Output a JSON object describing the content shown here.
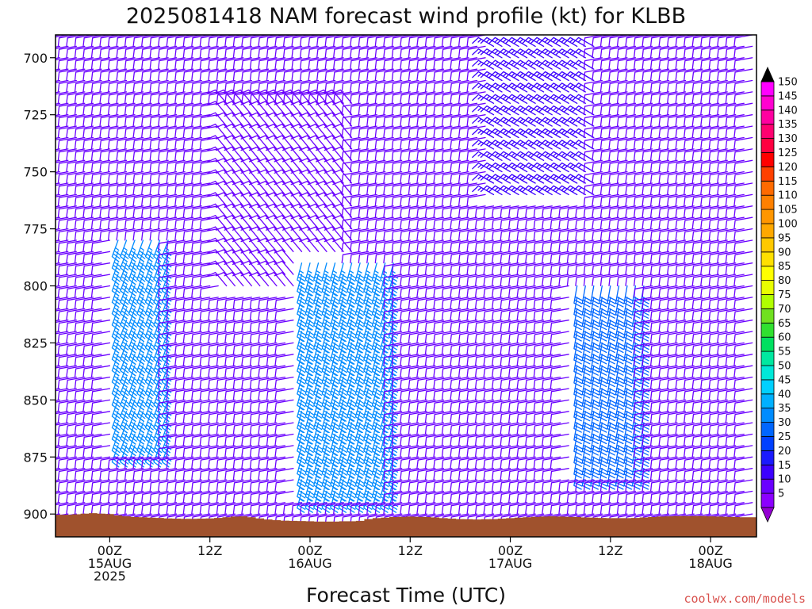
{
  "chart_data": {
    "type": "wind-barb-time-height",
    "title": "2025081418 NAM forecast wind profile (kt) for KLBB",
    "xlabel": "Forecast Time (UTC)",
    "ylabel": "",
    "units": "kt",
    "ylim": [
      910,
      690
    ],
    "y_ticks": [
      700,
      725,
      750,
      775,
      800,
      825,
      850,
      875,
      900
    ],
    "x_ticks": [
      {
        "hour": 6,
        "lines": [
          "00Z",
          "15AUG",
          "2025"
        ]
      },
      {
        "hour": 18,
        "lines": [
          "12Z"
        ]
      },
      {
        "hour": 30,
        "lines": [
          "00Z",
          "16AUG"
        ]
      },
      {
        "hour": 42,
        "lines": [
          "12Z"
        ]
      },
      {
        "hour": 54,
        "lines": [
          "00Z",
          "17AUG"
        ]
      },
      {
        "hour": 66,
        "lines": [
          "12Z"
        ]
      },
      {
        "hour": 78,
        "lines": [
          "00Z",
          "18AUG"
        ]
      }
    ],
    "xlim": [
      -0.5,
      83.5
    ],
    "levels_hpa": [
      690,
      695,
      700,
      705,
      710,
      715,
      720,
      725,
      730,
      735,
      740,
      745,
      750,
      755,
      760,
      765,
      770,
      775,
      780,
      785,
      790,
      795,
      800,
      805,
      810,
      815,
      820,
      825,
      830,
      835,
      840,
      845,
      850,
      855,
      860,
      865,
      870,
      875,
      880,
      885,
      890,
      895,
      900,
      905
    ],
    "surface_pressure_hpa": [
      900.3,
      900.3,
      900.1,
      899.8,
      899.6,
      899.8,
      900.0,
      900.6,
      901.0,
      901.3,
      901.4,
      901.6,
      901.7,
      901.9,
      902.0,
      902.1,
      902.1,
      902.0,
      901.9,
      901.7,
      901.4,
      901.1,
      901.0,
      901.4,
      901.9,
      902.4,
      902.7,
      902.9,
      903.0,
      903.1,
      903.2,
      903.3,
      903.3,
      903.3,
      903.2,
      903.2,
      903.0,
      902.2,
      901.8,
      901.6,
      901.3,
      901.2,
      901.1,
      901.2,
      901.3,
      901.5,
      901.8,
      902.0,
      902.2,
      902.3,
      902.4,
      902.3,
      902.2,
      902.0,
      901.8,
      901.6,
      901.4,
      901.2,
      901.1,
      901.0,
      901.1,
      901.2,
      901.3,
      901.5,
      901.6,
      901.7,
      901.8,
      901.8,
      901.8,
      901.7,
      901.5,
      901.3,
      901.1,
      901.0,
      900.9,
      900.9,
      900.9,
      900.9,
      901.0,
      901.1,
      901.2,
      901.3,
      901.4,
      901.4
    ],
    "wind_fields": [
      {
        "from": [
          0,
          690
        ],
        "to": [
          84,
          905
        ],
        "dir_deg": 260,
        "speed_kt": 10
      },
      {
        "from": [
          7,
          780
        ],
        "to": [
          13,
          870
        ],
        "dir_deg": 200,
        "speed_kt": 35
      },
      {
        "from": [
          20,
          720
        ],
        "to": [
          35,
          800
        ],
        "dir_deg": 320,
        "speed_kt": 10
      },
      {
        "from": [
          29,
          790
        ],
        "to": [
          40,
          890
        ],
        "dir_deg": 195,
        "speed_kt": 35
      },
      {
        "from": [
          52,
          690
        ],
        "to": [
          64,
          760
        ],
        "dir_deg": 300,
        "speed_kt": 15
      },
      {
        "from": [
          62,
          800
        ],
        "to": [
          70,
          880
        ],
        "dir_deg": 190,
        "speed_kt": 30
      }
    ],
    "colorbar": {
      "unit": "kt",
      "labels": [
        5,
        10,
        15,
        20,
        25,
        30,
        35,
        40,
        45,
        50,
        55,
        60,
        65,
        70,
        75,
        80,
        85,
        90,
        95,
        100,
        105,
        110,
        115,
        120,
        125,
        130,
        135,
        140,
        145,
        150
      ],
      "colors": [
        "#8b00ff",
        "#6a00ff",
        "#3c00ff",
        "#1a1aff",
        "#0040ff",
        "#0066ff",
        "#008cff",
        "#00b0ff",
        "#00d0ff",
        "#00e8d8",
        "#00e8a0",
        "#00e060",
        "#30e030",
        "#70e020",
        "#b0ff00",
        "#e8ff00",
        "#ffff00",
        "#ffe000",
        "#ffc800",
        "#ffa800",
        "#ff9600",
        "#ff8000",
        "#ff6a00",
        "#ff4000",
        "#ff0000",
        "#ff0040",
        "#ff0070",
        "#ff00a0",
        "#ff00d0",
        "#ff00ff"
      ],
      "top_arrow_color": "#000000",
      "bottom_arrow_color": "#9400d3"
    },
    "terrain_color": "#a0522d",
    "grid": false
  },
  "credit": "coolwx.com/models"
}
